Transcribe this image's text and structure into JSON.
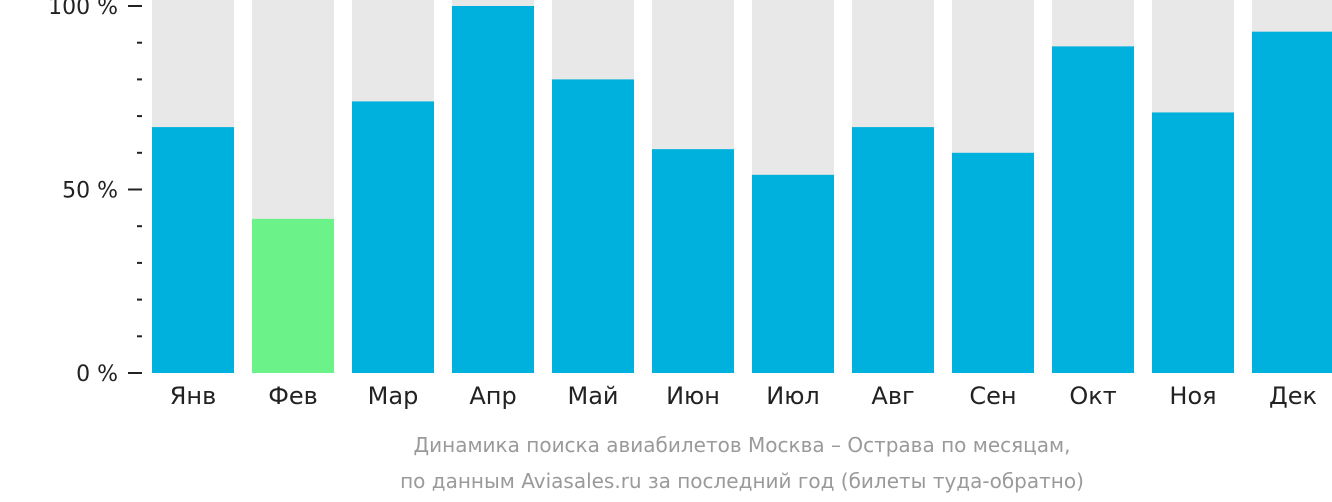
{
  "chart_data": {
    "type": "bar",
    "categories": [
      "Янв",
      "Фев",
      "Мар",
      "Апр",
      "Май",
      "Июн",
      "Июл",
      "Авг",
      "Сен",
      "Окт",
      "Ноя",
      "Дек"
    ],
    "values": [
      67,
      42,
      74,
      100,
      80,
      61,
      54,
      67,
      60,
      89,
      71,
      93
    ],
    "highlight_index": 1,
    "ylim": [
      0,
      100
    ],
    "yticks": [
      0,
      50,
      100
    ],
    "ytick_labels": [
      "0 %",
      "50 %",
      "100 %"
    ],
    "minor_ticks": [
      10,
      20,
      30,
      40,
      60,
      70,
      80,
      90
    ],
    "caption_line1": "Динамика поиска авиабилетов Москва – Острава по месяцам,",
    "caption_line2": "по данным Aviasales.ru за последний год (билеты туда-обратно)",
    "colors": {
      "bar": "#00b0dd",
      "highlight": "#6bf288",
      "background_bar": "#e8e8e8",
      "axis": "#222222",
      "caption": "#9a9a9a"
    }
  }
}
